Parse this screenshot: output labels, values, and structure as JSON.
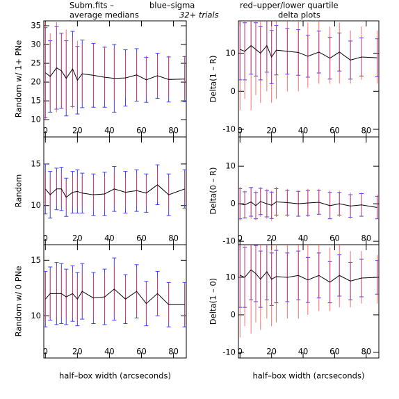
{
  "header": {
    "file": "Subm.fits  –",
    "blue_note": "blue–sigma",
    "red_note": "red–upper/lower quartile",
    "left_title": "average medians",
    "trials": "32+ trials",
    "right_title": "delta plots",
    "blue_color": "#3f3fff",
    "red_color": "#ff3f3f"
  },
  "chart_data": [
    {
      "type": "errorbar",
      "ylabel": "Random w/ 1+ PNe",
      "x": [
        0,
        3,
        7,
        10,
        13,
        17,
        20,
        23,
        30,
        37,
        43,
        50,
        57,
        63,
        70,
        77,
        87
      ],
      "values": [
        22.5,
        21.5,
        23.8,
        23,
        21,
        23.5,
        20.5,
        22.2,
        21.8,
        21.3,
        21,
        21.1,
        21.9,
        20.6,
        21.7,
        20.7,
        20.8
      ],
      "sigma": [
        12,
        9.5,
        11,
        10,
        10,
        10,
        9,
        9,
        8.5,
        8,
        9,
        7.5,
        7,
        6,
        6,
        6,
        6
      ],
      "q_low": [
        10,
        13,
        12,
        13,
        12.5,
        13,
        14,
        14.5,
        14,
        15,
        15,
        16,
        15.5,
        16,
        16,
        16,
        16
      ],
      "q_high": [
        36,
        33,
        36,
        33,
        34,
        32,
        31,
        30,
        30,
        29.5,
        29,
        28,
        28,
        27,
        27,
        27,
        27
      ],
      "line_color": "#000000",
      "sigma_color": "#3f3fff",
      "quartile_color": "#ff3f3f",
      "xlim": [
        -1,
        88
      ],
      "ylim": [
        5.4,
        36.3
      ],
      "xticks": [
        0,
        20,
        40,
        60,
        80
      ],
      "yticks": [
        10,
        15,
        20,
        25,
        30,
        35
      ]
    },
    {
      "type": "errorbar",
      "ylabel": "Random",
      "x": [
        0,
        3,
        7,
        10,
        13,
        17,
        20,
        23,
        30,
        37,
        43,
        50,
        57,
        63,
        70,
        77,
        87
      ],
      "values": [
        12,
        11.3,
        12,
        12,
        11,
        11.6,
        11.7,
        11.5,
        11.3,
        11.4,
        12,
        11.6,
        11.8,
        11.5,
        12.5,
        11.3,
        12
      ],
      "sigma": [
        3,
        2.8,
        2.5,
        2.6,
        2.3,
        2.5,
        2.6,
        2.4,
        2.5,
        2.6,
        2.7,
        2.5,
        2.5,
        2.3,
        2.4,
        2.5,
        2.3
      ],
      "q_low": [
        10,
        9.5,
        10,
        10,
        9.5,
        9.8,
        9.8,
        9.8,
        9.6,
        9.5,
        10,
        9.7,
        10,
        9.9,
        10.5,
        9.6,
        10.2
      ],
      "q_high": [
        14,
        13.5,
        14,
        14,
        13,
        13.5,
        13.5,
        13.5,
        13.3,
        13.5,
        14,
        13.4,
        13.8,
        13.5,
        14.5,
        13.2,
        14
      ],
      "line_color": "#000000",
      "sigma_color": "#3f3fff",
      "quartile_color": "#ff3f3f",
      "xlim": [
        -1,
        88
      ],
      "ylim": [
        5.3,
        18.25
      ],
      "xticks": [
        0,
        20,
        40,
        60,
        80
      ],
      "yticks": [
        10,
        15
      ]
    },
    {
      "type": "errorbar",
      "ylabel": "Random w/ 0 PNe",
      "xlabel": "half–box width (arcseconds)",
      "x": [
        0,
        3,
        7,
        10,
        13,
        17,
        20,
        23,
        30,
        37,
        43,
        50,
        57,
        63,
        70,
        77,
        87
      ],
      "values": [
        11.5,
        12,
        12,
        12,
        11.7,
        12,
        11.5,
        12.2,
        11.6,
        11.7,
        12.4,
        11.5,
        12.2,
        11.1,
        12,
        11,
        11
      ],
      "sigma": [
        2.5,
        2.4,
        2.8,
        2.7,
        2.5,
        2.5,
        2.4,
        2.5,
        2.3,
        2.5,
        2.8,
        2.2,
        2.4,
        2,
        2,
        2,
        2
      ],
      "q_low": [
        9.5,
        9.8,
        9.8,
        9.8,
        9.8,
        9.8,
        9.5,
        10,
        9.7,
        9.5,
        10,
        9.5,
        10,
        9.5,
        10,
        9.4,
        9.2
      ],
      "q_high": [
        14,
        14,
        14.5,
        14.3,
        14,
        14,
        13.5,
        14,
        13.5,
        13.8,
        14.5,
        13.5,
        14.2,
        13,
        13.5,
        13,
        13
      ],
      "line_color": "#000000",
      "sigma_color": "#3f3fff",
      "quartile_color": "#ff3f3f",
      "xlim": [
        -1,
        88
      ],
      "ylim": [
        6.2,
        16.4
      ],
      "xticks": [
        0,
        20,
        40,
        60,
        80
      ],
      "yticks": [
        10,
        15
      ]
    },
    {
      "type": "errorbar",
      "ylabel": "Delta(1 – R)",
      "x": [
        0,
        3,
        7,
        10,
        13,
        17,
        20,
        23,
        30,
        37,
        43,
        50,
        57,
        63,
        70,
        77,
        87
      ],
      "values": [
        11,
        10.5,
        12,
        11,
        10,
        12,
        9,
        10.8,
        10.5,
        10.2,
        9.2,
        10.3,
        8.7,
        10.3,
        8.2,
        9,
        8.8
      ],
      "sigma": [
        8,
        7.5,
        7.5,
        7,
        7,
        7,
        7,
        6.5,
        6,
        6,
        5.5,
        5.5,
        5.5,
        5,
        5,
        5,
        5
      ],
      "q_low": [
        -5,
        -2,
        -5,
        -1,
        -3,
        0,
        -3,
        -2,
        0,
        0,
        1,
        2,
        2,
        2,
        2,
        3,
        2
      ],
      "q_high": [
        22,
        22,
        24,
        22,
        22,
        22,
        20,
        20,
        20,
        19,
        18,
        19,
        17,
        18,
        16,
        17,
        16
      ],
      "line_color": "#000000",
      "sigma_color": "#3f3fff",
      "quartile_color": "#ff3f3f",
      "xlim": [
        -1,
        88
      ],
      "ylim": [
        -12,
        18.5
      ],
      "xticks": [
        0,
        20,
        40,
        60,
        80
      ],
      "yticks": [
        -10,
        0,
        10
      ]
    },
    {
      "type": "errorbar",
      "ylabel": "Delta(0 – R)",
      "x": [
        0,
        3,
        7,
        10,
        13,
        17,
        20,
        23,
        30,
        37,
        43,
        50,
        57,
        63,
        70,
        77,
        87
      ],
      "values": [
        0,
        -0.3,
        0.5,
        -0.5,
        0.6,
        0,
        -0.4,
        0.5,
        0.3,
        0,
        0.2,
        0.4,
        -0.5,
        0,
        -0.6,
        -0.3,
        -1
      ],
      "sigma": [
        4,
        3.5,
        3.8,
        3.5,
        3.5,
        3.5,
        3.5,
        3.5,
        3.3,
        3.3,
        3.3,
        3.2,
        3.5,
        3,
        3,
        3,
        3
      ],
      "q_low": [
        -4.5,
        -4,
        -4,
        -4.5,
        -3.5,
        -4,
        -4.5,
        -3.5,
        -3.5,
        -3.5,
        -3.5,
        -3,
        -4,
        -3.5,
        -4,
        -3.5,
        -4
      ],
      "q_high": [
        4.5,
        3.5,
        4.5,
        3.5,
        4.5,
        4,
        3.5,
        4.5,
        4,
        3.5,
        4,
        4,
        3.5,
        3.5,
        3,
        3,
        2.5
      ],
      "line_color": "#000000",
      "sigma_color": "#3f3fff",
      "quartile_color": "#ff3f3f",
      "xlim": [
        -1,
        88
      ],
      "ylim": [
        -10.9,
        17.8
      ],
      "xticks": [
        0,
        20,
        40,
        60,
        80
      ],
      "yticks": [
        -10,
        0,
        10
      ]
    },
    {
      "type": "errorbar",
      "ylabel": "Delta(1 – 0)",
      "xlabel": "half–box width (arcseconds)",
      "x": [
        0,
        3,
        7,
        10,
        13,
        17,
        20,
        23,
        30,
        37,
        43,
        50,
        57,
        63,
        70,
        77,
        87
      ],
      "values": [
        10.5,
        10,
        12,
        11,
        9.5,
        11.5,
        9.5,
        10.2,
        10,
        10.5,
        9.3,
        10.5,
        8.7,
        10.5,
        9,
        9.8,
        10
      ],
      "sigma": [
        8.5,
        8,
        8,
        7.5,
        7.5,
        7.5,
        7,
        7,
        6.5,
        6.5,
        6,
        6,
        5.5,
        5.5,
        5,
        5,
        4.5
      ],
      "q_low": [
        -6,
        -3,
        -5,
        -2,
        -4,
        -1,
        -3,
        -2,
        -1,
        -1,
        0,
        1,
        1,
        2,
        2,
        3,
        3
      ],
      "q_high": [
        22,
        22,
        24,
        22,
        22,
        22,
        21,
        21,
        21,
        21,
        20,
        20,
        18,
        19,
        17,
        17,
        16
      ],
      "line_color": "#000000",
      "sigma_color": "#3f3fff",
      "quartile_color": "#ff3f3f",
      "xlim": [
        -1,
        88
      ],
      "ylim": [
        -11.5,
        18.7
      ],
      "xticks": [
        0,
        20,
        40,
        60,
        80
      ],
      "yticks": [
        -10,
        0,
        10
      ]
    }
  ]
}
